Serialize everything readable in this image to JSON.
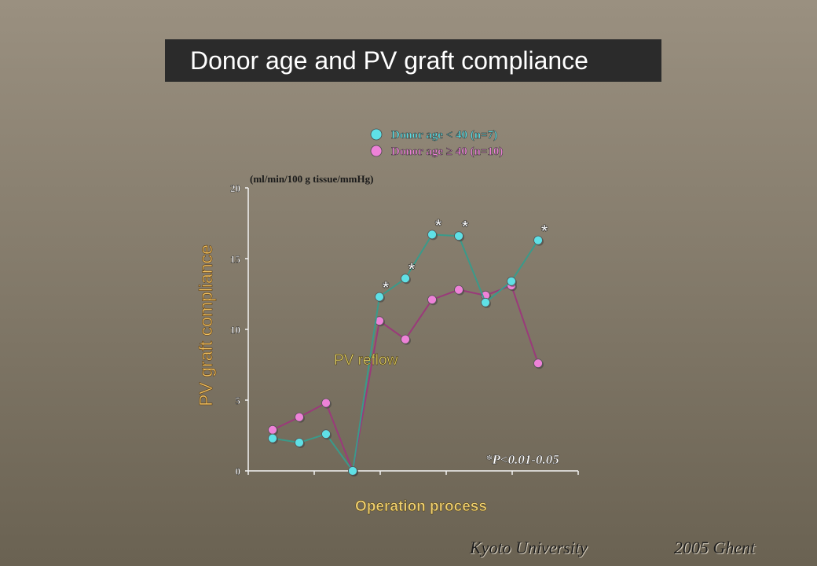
{
  "title": "Donor age and PV graft compliance",
  "footer": {
    "institution": "Kyoto University",
    "year_place": "2005   Ghent"
  },
  "chart_data": {
    "type": "line",
    "ylabel": "PV graft compliance",
    "unit": "(ml/min/100  g tissue/mmHg)",
    "xlabel": "Operation process",
    "annotation": "PV reflow",
    "significance_note": "*P<0.01-0.05",
    "ylim": [
      0,
      20
    ],
    "yticks": [
      "0",
      "5",
      "10",
      "15",
      "20"
    ],
    "x": [
      1,
      2,
      3,
      4,
      5,
      6,
      7,
      8,
      9,
      10,
      11
    ],
    "series": [
      {
        "name": "Donor age < 40 (n=7)",
        "color": "#5fe0e6",
        "line_color": "#3a9a8a",
        "values": [
          2.3,
          2.0,
          2.6,
          0.0,
          12.3,
          13.6,
          16.7,
          16.6,
          11.9,
          13.4,
          16.3
        ],
        "significant": [
          false,
          false,
          false,
          false,
          true,
          true,
          true,
          true,
          false,
          false,
          true
        ]
      },
      {
        "name": "Donor age ≥ 40 (n=10)",
        "color": "#ee82d8",
        "line_color": "#9a3a7a",
        "values": [
          2.9,
          3.8,
          4.8,
          0.0,
          10.6,
          9.3,
          12.1,
          12.8,
          12.4,
          13.1,
          7.6
        ]
      }
    ],
    "legend_position": "top"
  }
}
